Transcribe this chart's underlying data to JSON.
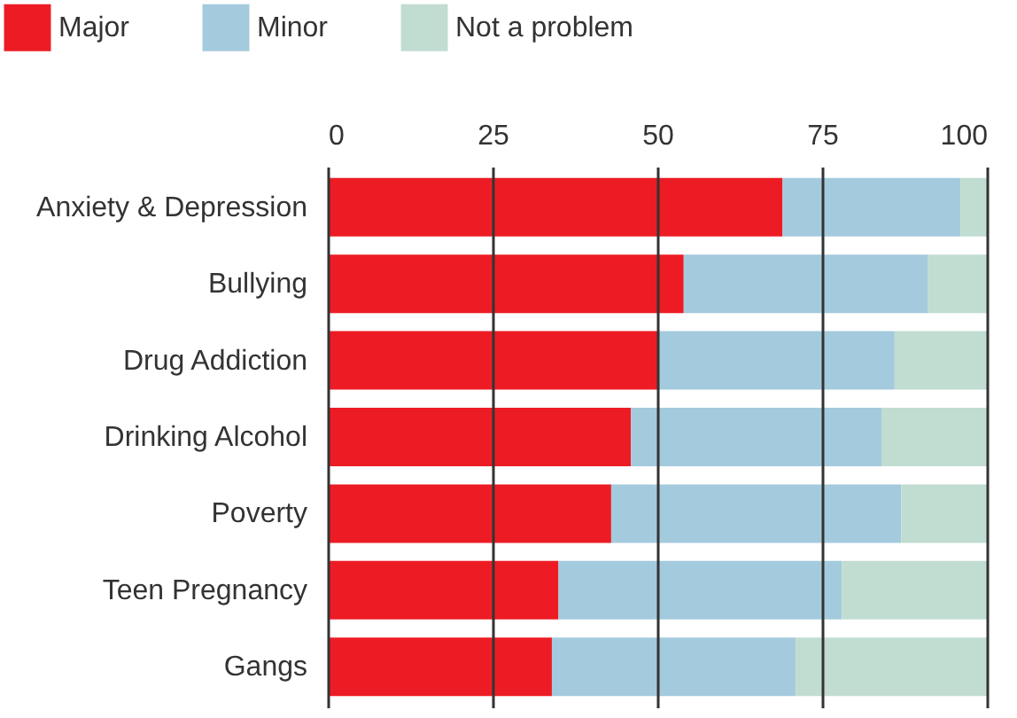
{
  "chart_data": {
    "type": "bar",
    "orientation": "horizontal",
    "stacked": true,
    "categories": [
      "Anxiety & Depression",
      "Bullying",
      "Drug Addiction",
      "Drinking Alcohol",
      "Poverty",
      "Teen Pregnancy",
      "Gangs"
    ],
    "series": [
      {
        "name": "Major",
        "color": "#ed1c24",
        "values": [
          69,
          54,
          50,
          46,
          43,
          35,
          34
        ]
      },
      {
        "name": "Minor",
        "color": "#a4cadd",
        "values": [
          27,
          37,
          36,
          38,
          44,
          43,
          37
        ]
      },
      {
        "name": "Not a problem",
        "color": "#c1dcd0",
        "values": [
          4,
          9,
          14,
          16,
          13,
          22,
          29
        ]
      }
    ],
    "xlim": [
      0,
      100
    ],
    "xticks": [
      0,
      25,
      50,
      75,
      100
    ],
    "grid": "x",
    "legend": "top left"
  }
}
